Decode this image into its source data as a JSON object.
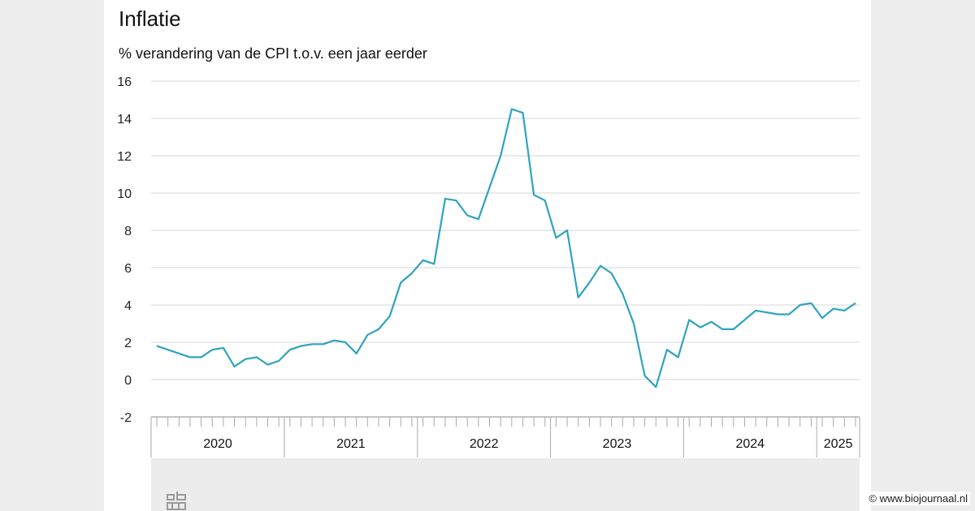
{
  "title": "Inflatie",
  "subtitle": "% verandering van de CPI t.o.v. een jaar eerder",
  "watermark": "© www.biojournaal.nl",
  "colors": {
    "line": "#2ea3bf",
    "grid": "#d4d4d4",
    "axis": "#888888",
    "background": "#ffffff"
  },
  "icon": "cbs-logo-icon",
  "chart_data": {
    "type": "line",
    "title": "Inflatie",
    "ylabel": "% verandering van de CPI t.o.v. een jaar eerder",
    "ylim": [
      -2,
      16
    ],
    "yticks": [
      -2,
      0,
      2,
      4,
      6,
      8,
      10,
      12,
      14,
      16
    ],
    "grid": true,
    "x_start": "2020-01",
    "x_year_labels": [
      "2020",
      "2021",
      "2022",
      "2023",
      "2024",
      "2025"
    ],
    "series": [
      {
        "values": [
          1.8,
          1.6,
          1.4,
          1.2,
          1.2,
          1.6,
          1.7,
          0.7,
          1.1,
          1.2,
          0.8,
          1.0,
          1.6,
          1.8,
          1.9,
          1.9,
          2.1,
          2.0,
          1.4,
          2.4,
          2.7,
          3.4,
          5.2,
          5.7,
          6.4,
          6.2,
          9.7,
          9.6,
          8.8,
          8.6,
          10.3,
          12.0,
          14.5,
          14.3,
          9.9,
          9.6,
          7.6,
          8.0,
          4.4,
          5.2,
          6.1,
          5.7,
          4.6,
          3.0,
          0.2,
          -0.4,
          1.6,
          1.2,
          3.2,
          2.8,
          3.1,
          2.7,
          2.7,
          3.2,
          3.7,
          3.6,
          3.5,
          3.5,
          4.0,
          4.1,
          3.3,
          3.8,
          3.7,
          4.1
        ]
      }
    ]
  }
}
